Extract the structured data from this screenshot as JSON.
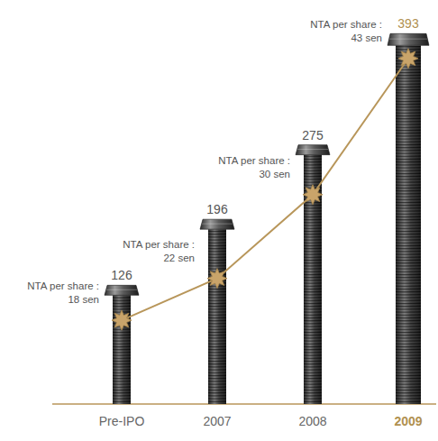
{
  "chart_data": {
    "type": "bar",
    "categories": [
      "Pre-IPO",
      "2007",
      "2008",
      "2009"
    ],
    "series": [
      {
        "type": "bar",
        "color": "#3c3c3c",
        "values": [
          126,
          196,
          275,
          393
        ]
      },
      {
        "type": "line",
        "axis": "y2",
        "color": "#b8965a",
        "marker": "star",
        "line_style": "solid",
        "values": [
          18,
          22,
          30,
          43
        ],
        "value_labels": [
          "NTA per share : 18 sen",
          "NTA per share : 22 sen",
          "NTA per share : 30 sen",
          "NTA per share : 43 sen"
        ]
      }
    ],
    "ylim": [
      0,
      400
    ],
    "y2lim": [
      10,
      46
    ],
    "data_labels": true,
    "tick_labels": "x",
    "grid": false
  }
}
